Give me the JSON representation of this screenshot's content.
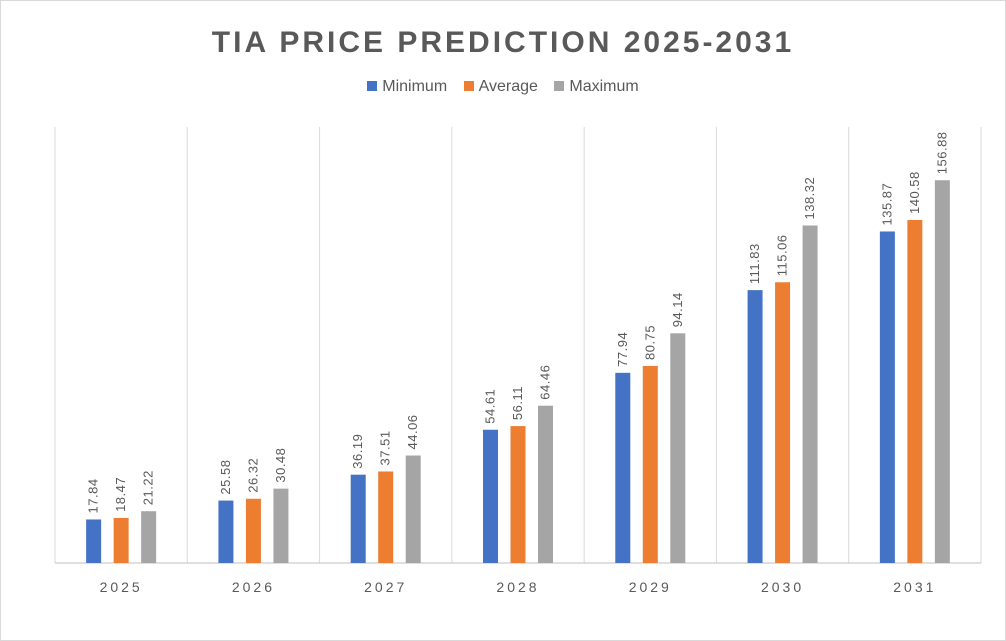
{
  "chart_data": {
    "type": "bar",
    "title": "TIA PRICE PREDICTION 2025-2031",
    "categories": [
      "2025",
      "2026",
      "2027",
      "2028",
      "2029",
      "2030",
      "2031"
    ],
    "series": [
      {
        "name": "Minimum",
        "color": "#4472C4",
        "values": [
          17.84,
          25.58,
          36.19,
          54.61,
          77.94,
          111.83,
          135.87
        ]
      },
      {
        "name": "Average",
        "color": "#ED7D31",
        "values": [
          18.47,
          26.32,
          37.51,
          56.11,
          80.75,
          115.06,
          140.58
        ]
      },
      {
        "name": "Maximum",
        "color": "#A5A5A5",
        "values": [
          21.22,
          30.48,
          44.06,
          64.46,
          94.14,
          138.32,
          156.88
        ]
      }
    ],
    "ylim": [
      0,
      180
    ],
    "grid": "vertical",
    "legend_position": "top",
    "data_labels": true
  }
}
